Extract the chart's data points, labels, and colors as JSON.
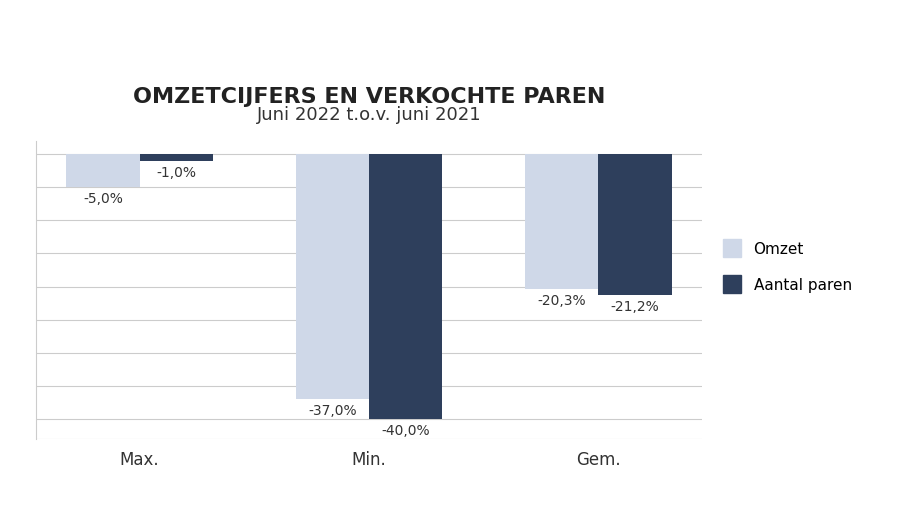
{
  "title": "OMZETCIJFERS EN VERKOCHTE PAREN",
  "subtitle": "Juni 2022 t.o.v. juni 2021",
  "categories": [
    "Max.",
    "Min.",
    "Gem."
  ],
  "omzet_values": [
    -5.0,
    -37.0,
    -20.3
  ],
  "aantal_paren_values": [
    -1.0,
    -40.0,
    -21.2
  ],
  "omzet_color": "#cfd8e8",
  "aantal_paren_color": "#2e3f5c",
  "ylim": [
    -43,
    2
  ],
  "grid_y_values": [
    0,
    -5,
    -10,
    -15,
    -20,
    -25,
    -30,
    -35,
    -40
  ],
  "legend_labels": [
    "Omzet",
    "Aantal paren"
  ],
  "bar_width": 0.32,
  "title_fontsize": 16,
  "subtitle_fontsize": 13,
  "label_fontsize": 10,
  "tick_fontsize": 12,
  "legend_fontsize": 11,
  "background_color": "#ffffff",
  "grid_color": "#cccccc"
}
